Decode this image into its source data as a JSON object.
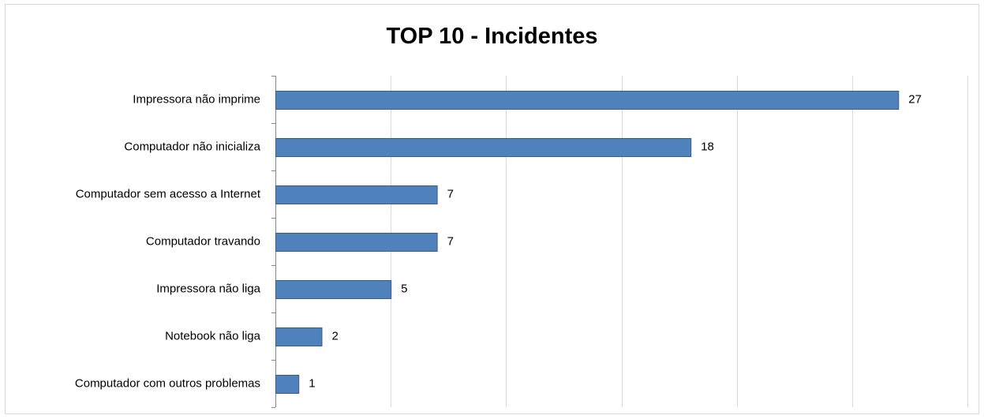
{
  "chart_data": {
    "type": "bar",
    "orientation": "horizontal",
    "title": "TOP 10 - Incidentes",
    "categories": [
      "Impressora não imprime",
      "Computador não inicializa",
      "Computador sem acesso a Internet",
      "Computador travando",
      "Impressora não liga",
      "Notebook não liga",
      "Computador com outros problemas"
    ],
    "values": [
      27,
      18,
      7,
      7,
      5,
      2,
      1
    ],
    "xlim": [
      0,
      30
    ],
    "grid": true,
    "legend": "none",
    "bar_color": "#4f81bd",
    "bar_border_color": "#385d8a"
  }
}
